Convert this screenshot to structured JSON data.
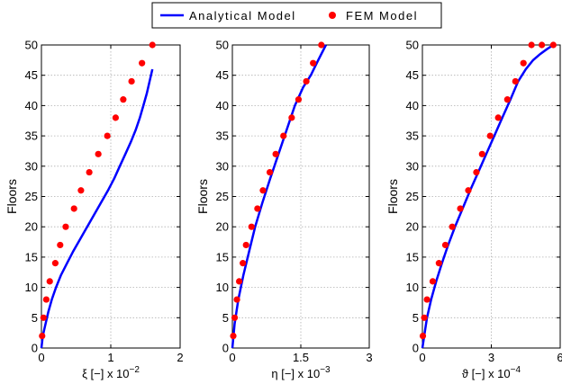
{
  "legend": {
    "analytical_label": "Analytical Model",
    "fem_label": "FEM Model"
  },
  "colors": {
    "analytical": "#0000ff",
    "fem": "#ff0000"
  },
  "chart_data": [
    {
      "type": "line",
      "xlabel": "ξ [−] x 10",
      "xexp": "−2",
      "ylabel": "Floors",
      "xlim": [
        0,
        2
      ],
      "ylim": [
        0,
        50
      ],
      "xticks": [
        0,
        1,
        2
      ],
      "xtick_labels": [
        "0",
        "1",
        "2"
      ],
      "yticks": [
        0,
        5,
        10,
        15,
        20,
        25,
        30,
        35,
        40,
        45,
        50
      ],
      "grid": true,
      "series": [
        {
          "name": "Analytical Model",
          "kind": "line",
          "x": [
            0,
            0.02,
            0.06,
            0.1,
            0.15,
            0.21,
            0.28,
            0.37,
            0.46,
            0.56,
            0.66,
            0.76,
            0.86,
            0.96,
            1.05,
            1.13,
            1.21,
            1.29,
            1.36,
            1.42,
            1.47,
            1.52,
            1.56,
            1.6
          ],
          "y": [
            0,
            2,
            4,
            6,
            8,
            10,
            12,
            14,
            16,
            18,
            20,
            22,
            24,
            26,
            28,
            30,
            32,
            34,
            36,
            38,
            40,
            42,
            44,
            46
          ]
        },
        {
          "name": "FEM Model",
          "kind": "scatter",
          "x": [
            0.01,
            0.03,
            0.07,
            0.12,
            0.2,
            0.27,
            0.35,
            0.47,
            0.57,
            0.69,
            0.82,
            0.95,
            1.07,
            1.18,
            1.3,
            1.45,
            1.6
          ],
          "y": [
            2,
            5,
            8,
            11,
            14,
            17,
            20,
            23,
            26,
            29,
            32,
            35,
            38,
            41,
            44,
            47,
            50
          ]
        }
      ]
    },
    {
      "type": "line",
      "xlabel": "η [−] x 10",
      "xexp": "−3",
      "ylabel": "Floors",
      "xlim": [
        0,
        3
      ],
      "ylim": [
        0,
        50
      ],
      "xticks": [
        0,
        1.5,
        3
      ],
      "xtick_labels": [
        "0",
        "1.5",
        "3"
      ],
      "yticks": [
        0,
        5,
        10,
        15,
        20,
        25,
        30,
        35,
        40,
        45,
        50
      ],
      "grid": true,
      "series": [
        {
          "name": "Analytical Model",
          "kind": "line",
          "x": [
            0,
            0.05,
            0.13,
            0.24,
            0.37,
            0.5,
            0.66,
            0.83,
            1.01,
            1.19,
            1.37,
            1.55,
            1.72,
            1.88,
            2.05
          ],
          "y": [
            0,
            4,
            8,
            12,
            16,
            20,
            24,
            28,
            32,
            36,
            40,
            43,
            45,
            47.5,
            50
          ]
        },
        {
          "name": "FEM Model",
          "kind": "scatter",
          "x": [
            0.02,
            0.05,
            0.1,
            0.15,
            0.23,
            0.3,
            0.42,
            0.55,
            0.67,
            0.82,
            0.95,
            1.12,
            1.3,
            1.45,
            1.62,
            1.77,
            1.95
          ],
          "y": [
            2,
            5,
            8,
            11,
            14,
            17,
            20,
            23,
            26,
            29,
            32,
            35,
            38,
            41,
            44,
            47,
            50
          ]
        }
      ]
    },
    {
      "type": "line",
      "xlabel": "ϑ [−] x 10",
      "xexp": "−4",
      "ylabel": "Floors",
      "xlim": [
        0,
        6
      ],
      "ylim": [
        0,
        50
      ],
      "xticks": [
        0,
        3,
        6
      ],
      "xtick_labels": [
        "0",
        "3",
        "6"
      ],
      "yticks": [
        0,
        5,
        10,
        15,
        20,
        25,
        30,
        35,
        40,
        45,
        50
      ],
      "grid": true,
      "series": [
        {
          "name": "Analytical Model",
          "kind": "line",
          "x": [
            0,
            0.08,
            0.2,
            0.38,
            0.6,
            0.85,
            1.12,
            1.42,
            1.75,
            2.08,
            2.43,
            2.78,
            3.13,
            3.48,
            3.83,
            4.17,
            4.5,
            4.82,
            5.13,
            5.42,
            5.7
          ],
          "y": [
            0,
            2,
            5,
            8,
            11,
            14,
            17,
            20,
            23,
            26,
            29,
            32,
            35,
            38,
            41,
            44,
            46,
            47.5,
            48.5,
            49.3,
            50
          ]
        },
        {
          "name": "FEM Model",
          "kind": "scatter",
          "x": [
            0.02,
            0.08,
            0.2,
            0.45,
            0.72,
            1.0,
            1.3,
            1.65,
            2.0,
            2.35,
            2.6,
            2.95,
            3.3,
            3.7,
            4.05,
            4.4,
            4.75,
            5.2,
            5.7
          ],
          "y": [
            2,
            5,
            8,
            11,
            14,
            17,
            20,
            23,
            26,
            29,
            32,
            35,
            38,
            41,
            44,
            47,
            50,
            50,
            50
          ]
        }
      ]
    }
  ]
}
